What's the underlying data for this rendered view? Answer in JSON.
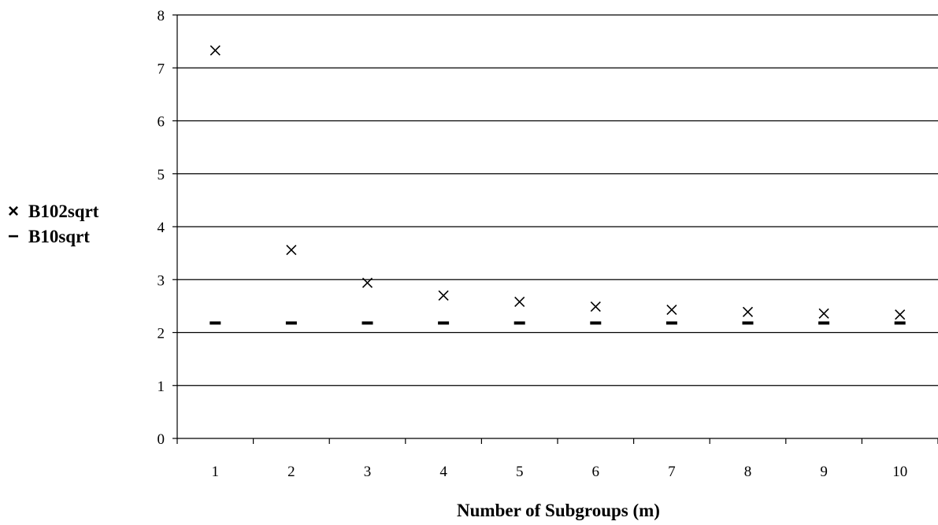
{
  "chart_data": {
    "type": "scatter",
    "title": "",
    "xlabel": "Number of Subgroups (m)",
    "ylabel": "",
    "categories": [
      "1",
      "2",
      "3",
      "4",
      "5",
      "6",
      "7",
      "8",
      "9",
      "10"
    ],
    "x": [
      1,
      2,
      3,
      4,
      5,
      6,
      7,
      8,
      9,
      10
    ],
    "ylim": [
      0,
      8
    ],
    "yticks": [
      0,
      1,
      2,
      3,
      4,
      5,
      6,
      7,
      8
    ],
    "ytick_labels": [
      "0",
      "1",
      "2",
      "3",
      "4",
      "5",
      "6",
      "7",
      "8"
    ],
    "grid": true,
    "legend_position": "left",
    "series": [
      {
        "name": "B102sqrt",
        "legend_symbol": "×",
        "marker": "x",
        "color": "#000000",
        "values": [
          7.33,
          3.56,
          2.94,
          2.7,
          2.58,
          2.49,
          2.43,
          2.39,
          2.36,
          2.34
        ]
      },
      {
        "name": "B10sqrt",
        "legend_symbol": "−",
        "marker": "dash",
        "color": "#000000",
        "values": [
          2.18,
          2.18,
          2.18,
          2.18,
          2.18,
          2.18,
          2.18,
          2.18,
          2.18,
          2.18
        ]
      }
    ]
  }
}
